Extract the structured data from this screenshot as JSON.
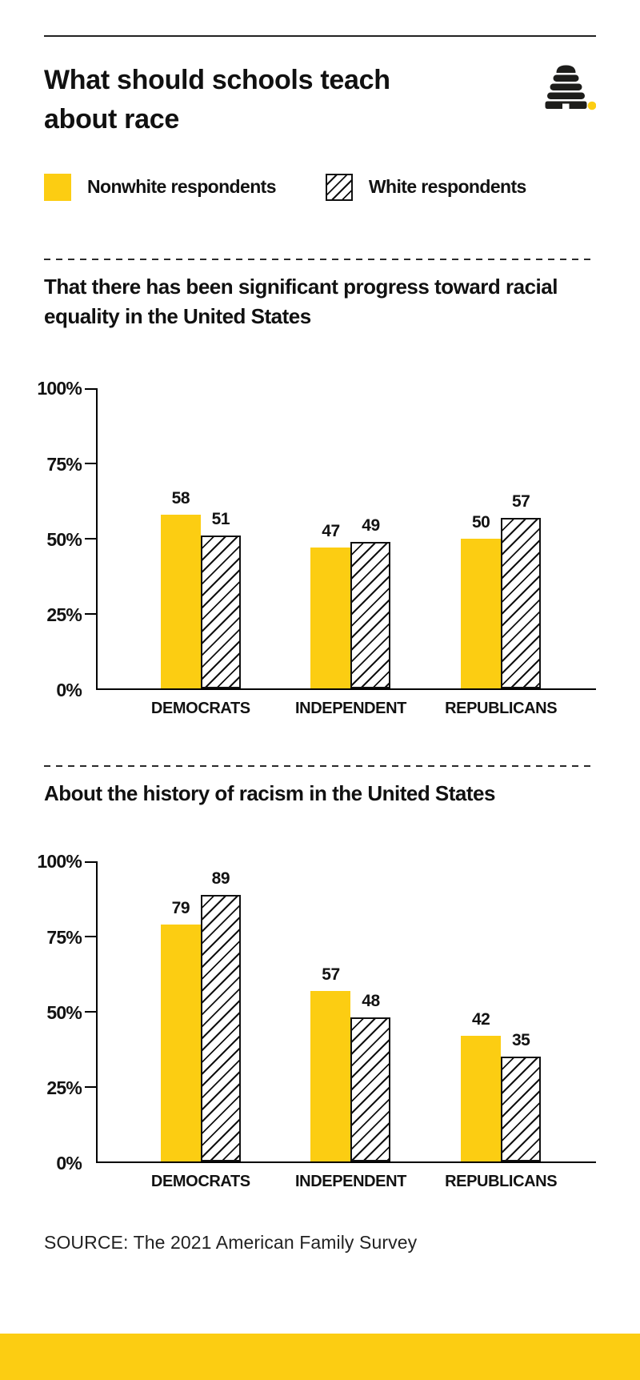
{
  "header": {
    "title": "What should schools teach about race",
    "logo": "beehive-logo"
  },
  "legend": {
    "items": [
      {
        "label": "Nonwhite respondents",
        "swatch": "solid-yellow"
      },
      {
        "label": "White respondents",
        "swatch": "hatched"
      }
    ]
  },
  "colors": {
    "brand_yellow": "#FCCD12",
    "ink": "#111111"
  },
  "source": "SOURCE: The 2021 American Family Survey",
  "chart_data": [
    {
      "type": "bar",
      "title": "That there has been significant progress toward racial equality in the United States",
      "categories": [
        "DEMOCRATS",
        "INDEPENDENT",
        "REPUBLICANS"
      ],
      "series": [
        {
          "name": "Nonwhite respondents",
          "style": "solid-yellow",
          "values": [
            58,
            47,
            50
          ]
        },
        {
          "name": "White respondents",
          "style": "hatched",
          "values": [
            51,
            49,
            57
          ]
        }
      ],
      "xlabel": "",
      "ylabel": "",
      "ylim": [
        0,
        100
      ],
      "yticks": [
        0,
        25,
        50,
        75,
        100
      ],
      "ytick_suffix": "%",
      "grid": false,
      "legend_position": "top",
      "bar_labels": true
    },
    {
      "type": "bar",
      "title": "About the history of racism in the United States",
      "categories": [
        "DEMOCRATS",
        "INDEPENDENT",
        "REPUBLICANS"
      ],
      "series": [
        {
          "name": "Nonwhite respondents",
          "style": "solid-yellow",
          "values": [
            79,
            57,
            42
          ]
        },
        {
          "name": "White respondents",
          "style": "hatched",
          "values": [
            89,
            48,
            35
          ]
        }
      ],
      "xlabel": "",
      "ylabel": "",
      "ylim": [
        0,
        100
      ],
      "yticks": [
        0,
        25,
        50,
        75,
        100
      ],
      "ytick_suffix": "%",
      "grid": false,
      "legend_position": "top",
      "bar_labels": true
    }
  ]
}
